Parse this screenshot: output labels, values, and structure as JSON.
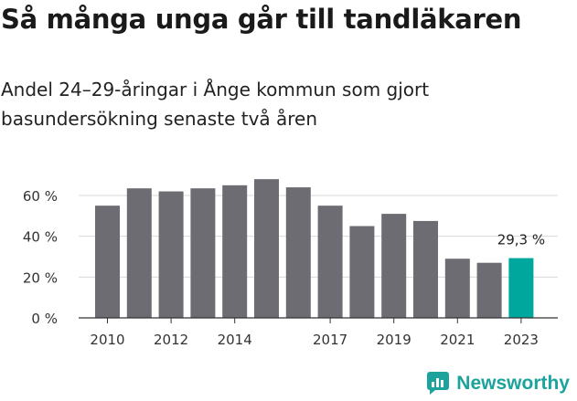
{
  "title": "Så många unga går till tandläkaren",
  "subtitle": "Andel 24–29-åringar i Ånge kommun som gjort basundersökning senaste två åren",
  "brand": {
    "name": "Newsworthy",
    "color": "#1ba39c"
  },
  "colors": {
    "bar": "#6d6c72",
    "highlight": "#00a79d",
    "grid": "#d9d9d9",
    "axis": "#333333"
  },
  "chart_data": {
    "type": "bar",
    "x": [
      2010,
      2011,
      2012,
      2013,
      2014,
      2015,
      2016,
      2017,
      2018,
      2019,
      2020,
      2021,
      2022,
      2023
    ],
    "values": [
      55,
      63.5,
      62,
      63.5,
      65,
      68,
      64,
      55,
      45,
      51,
      47.5,
      29,
      27,
      29.3
    ],
    "x_tick_labels": [
      "2010",
      "2012",
      "2014",
      "2017",
      "2019",
      "2021",
      "2023"
    ],
    "y_ticks": [
      0,
      20,
      40,
      60
    ],
    "y_tick_labels": [
      "0 %",
      "20 %",
      "40 %",
      "60 %"
    ],
    "ylim": [
      0,
      70
    ],
    "grid": true,
    "highlight_index": 13,
    "annotation": "29,3 %"
  }
}
